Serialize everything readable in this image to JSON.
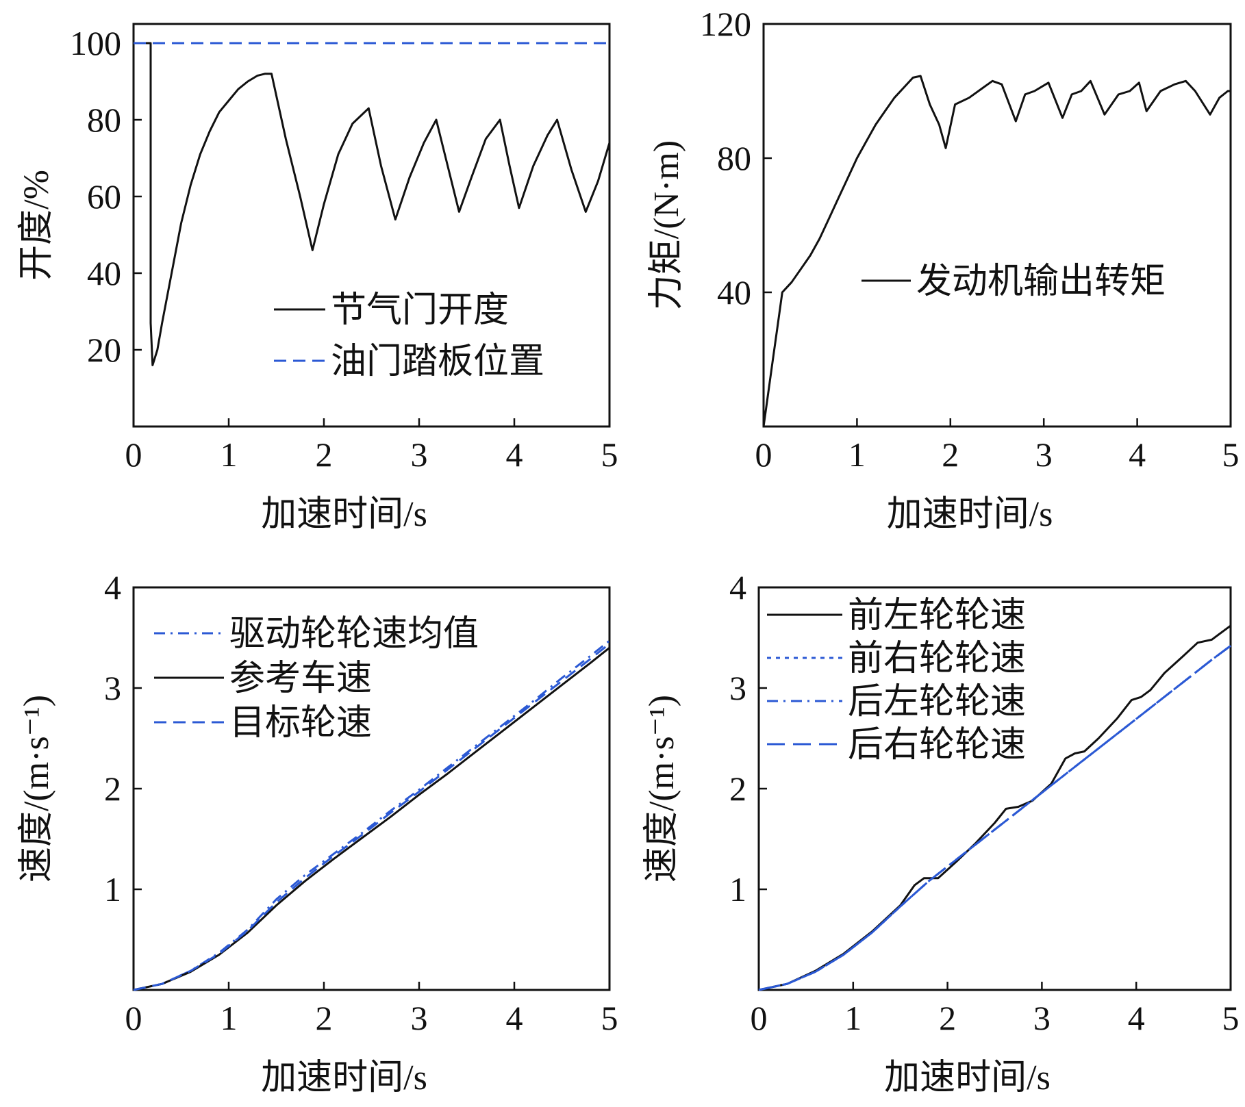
{
  "figure": {
    "charts": [
      {
        "id": "throttle",
        "type": "line",
        "xlabel": "加速时间/s",
        "ylabel": "开度/%",
        "xlim": [
          0,
          5
        ],
        "ylim": [
          0,
          105
        ],
        "xticks": [
          0,
          1,
          2,
          3,
          4,
          5
        ],
        "xtick_labels": [
          "0",
          "1",
          "2",
          "3",
          "4",
          "5"
        ],
        "yticks": [
          20,
          40,
          60,
          80,
          100
        ],
        "ytick_labels": [
          "20",
          "40",
          "60",
          "80",
          "100"
        ],
        "legend_position": "center-right",
        "series": [
          {
            "name": "节气门开度",
            "color": "#111111",
            "style": "solid",
            "x": [
              0,
              0.18,
              0.18,
              0.2,
              0.25,
              0.3,
              0.4,
              0.5,
              0.6,
              0.7,
              0.8,
              0.9,
              1.0,
              1.1,
              1.2,
              1.3,
              1.38,
              1.45,
              1.6,
              1.75,
              1.88,
              2.0,
              2.15,
              2.3,
              2.47,
              2.6,
              2.75,
              2.9,
              3.05,
              3.18,
              3.3,
              3.42,
              3.55,
              3.7,
              3.85,
              3.95,
              4.05,
              4.2,
              4.35,
              4.45,
              4.6,
              4.75,
              4.88,
              5.0
            ],
            "y": [
              100,
              100,
              27,
              16,
              20,
              27,
              40,
              53,
              63,
              71,
              77,
              82,
              85,
              88,
              90,
              91.5,
              92,
              92,
              75,
              60,
              46,
              58,
              71,
              79,
              83,
              68,
              54,
              65,
              74,
              80,
              68,
              56,
              65,
              75,
              80,
              68,
              57,
              68,
              76,
              80,
              67,
              56,
              64,
              74
            ]
          },
          {
            "name": "油门踏板位置",
            "color": "#2b59d4",
            "style": "dash",
            "x": [
              0,
              5
            ],
            "y": [
              100,
              100
            ]
          }
        ]
      },
      {
        "id": "torque",
        "type": "line",
        "xlabel": "加速时间/s",
        "ylabel": "力矩/(N·m)",
        "xlim": [
          0,
          5
        ],
        "ylim": [
          0,
          120
        ],
        "xticks": [
          0,
          1,
          2,
          3,
          4,
          5
        ],
        "xtick_labels": [
          "0",
          "1",
          "2",
          "3",
          "4",
          "5"
        ],
        "yticks": [
          40,
          80,
          120
        ],
        "ytick_labels": [
          "40",
          "80",
          "120"
        ],
        "legend_position": "center-right",
        "series": [
          {
            "name": "发动机输出转矩",
            "color": "#111111",
            "style": "solid",
            "x": [
              0,
              0.05,
              0.1,
              0.15,
              0.2,
              0.3,
              0.4,
              0.5,
              0.6,
              0.7,
              0.8,
              0.9,
              1.0,
              1.1,
              1.2,
              1.3,
              1.4,
              1.5,
              1.6,
              1.68,
              1.78,
              1.88,
              1.95,
              2.05,
              2.2,
              2.35,
              2.45,
              2.55,
              2.7,
              2.8,
              2.9,
              3.05,
              3.2,
              3.3,
              3.4,
              3.5,
              3.65,
              3.8,
              3.92,
              4.02,
              4.1,
              4.25,
              4.4,
              4.52,
              4.62,
              4.78,
              4.88,
              4.97,
              5.0
            ],
            "y": [
              0,
              10,
              20,
              30,
              40,
              43,
              47,
              51,
              56,
              62,
              68,
              74,
              80,
              85,
              90,
              94,
              98,
              101,
              104,
              104.5,
              96,
              90,
              83,
              96,
              98,
              101,
              103,
              102,
              91,
              99,
              100,
              102.5,
              92,
              99,
              100,
              103,
              93,
              99,
              100,
              102.5,
              94,
              100,
              102,
              103,
              100,
              93,
              98,
              100,
              100
            ]
          }
        ]
      },
      {
        "id": "drive-speed",
        "type": "line",
        "xlabel": "加速时间/s",
        "ylabel": "速度/(m·s⁻¹)",
        "xlim": [
          0,
          5
        ],
        "ylim": [
          0,
          4
        ],
        "xticks": [
          0,
          1,
          2,
          3,
          4,
          5
        ],
        "xtick_labels": [
          "0",
          "1",
          "2",
          "3",
          "4",
          "5"
        ],
        "yticks": [
          1,
          2,
          3,
          4
        ],
        "ytick_labels": [
          "1",
          "2",
          "3",
          "4"
        ],
        "legend_position": "top-left",
        "series": [
          {
            "name": "驱动轮轮速均值",
            "color": "#2b59d4",
            "style": "dashdot",
            "x": [
              0,
              0.3,
              0.6,
              0.9,
              1.2,
              1.5,
              1.8,
              2.1,
              2.4,
              2.7,
              3.0,
              3.3,
              3.6,
              3.9,
              4.2,
              4.5,
              4.8,
              5.0
            ],
            "y": [
              0,
              0.06,
              0.19,
              0.37,
              0.6,
              0.9,
              1.14,
              1.35,
              1.56,
              1.78,
              1.99,
              2.21,
              2.43,
              2.65,
              2.87,
              3.1,
              3.32,
              3.47
            ]
          },
          {
            "name": "参考车速",
            "color": "#111111",
            "style": "solid",
            "x": [
              0,
              0.3,
              0.6,
              0.9,
              1.2,
              1.5,
              1.8,
              2.1,
              2.4,
              2.7,
              3.0,
              3.3,
              3.6,
              3.9,
              4.2,
              4.5,
              4.8,
              5.0
            ],
            "y": [
              0,
              0.06,
              0.18,
              0.35,
              0.57,
              0.84,
              1.08,
              1.3,
              1.51,
              1.72,
              1.94,
              2.15,
              2.37,
              2.59,
              2.81,
              3.03,
              3.25,
              3.4
            ]
          },
          {
            "name": "目标轮速",
            "color": "#2b59d4",
            "style": "dash",
            "x": [
              0,
              0.3,
              0.6,
              0.9,
              1.2,
              1.5,
              1.8,
              2.1,
              2.4,
              2.7,
              3.0,
              3.3,
              3.6,
              3.9,
              4.2,
              4.5,
              4.8,
              5.0
            ],
            "y": [
              0,
              0.06,
              0.19,
              0.36,
              0.59,
              0.87,
              1.11,
              1.33,
              1.54,
              1.76,
              1.97,
              2.19,
              2.41,
              2.63,
              2.85,
              3.07,
              3.29,
              3.44
            ]
          }
        ]
      },
      {
        "id": "wheel-speed",
        "type": "line",
        "xlabel": "加速时间/s",
        "ylabel": "速度/(m·s⁻¹)",
        "xlim": [
          0,
          5
        ],
        "ylim": [
          0,
          4
        ],
        "xticks": [
          0,
          1,
          2,
          3,
          4,
          5
        ],
        "xtick_labels": [
          "0",
          "1",
          "2",
          "3",
          "4",
          "5"
        ],
        "yticks": [
          1,
          2,
          3,
          4
        ],
        "ytick_labels": [
          "1",
          "2",
          "3",
          "4"
        ],
        "legend_position": "top-left",
        "series": [
          {
            "name": "前左轮轮速",
            "color": "#111111",
            "style": "solid",
            "x": [
              0,
              0.3,
              0.6,
              0.9,
              1.2,
              1.5,
              1.65,
              1.75,
              1.9,
              2.1,
              2.3,
              2.5,
              2.62,
              2.75,
              2.9,
              3.1,
              3.25,
              3.35,
              3.45,
              3.6,
              3.8,
              3.95,
              4.05,
              4.15,
              4.3,
              4.5,
              4.65,
              4.8,
              5.0
            ],
            "y": [
              0,
              0.06,
              0.19,
              0.36,
              0.58,
              0.84,
              1.04,
              1.11,
              1.11,
              1.28,
              1.46,
              1.66,
              1.8,
              1.82,
              1.88,
              2.05,
              2.3,
              2.35,
              2.37,
              2.5,
              2.7,
              2.88,
              2.91,
              2.98,
              3.15,
              3.32,
              3.45,
              3.48,
              3.62
            ]
          },
          {
            "name": "前右轮轮速",
            "color": "#2b59d4",
            "style": "dot",
            "x": [
              0,
              0.3,
              0.6,
              0.9,
              1.2,
              1.5,
              1.8,
              2.1,
              2.4,
              2.7,
              3.0,
              3.3,
              3.6,
              3.9,
              4.2,
              4.5,
              4.8,
              5.0
            ],
            "y": [
              0,
              0.06,
              0.18,
              0.35,
              0.57,
              0.83,
              1.08,
              1.3,
              1.52,
              1.74,
              1.96,
              2.18,
              2.4,
              2.62,
              2.84,
              3.06,
              3.28,
              3.42
            ]
          },
          {
            "name": "后左轮轮速",
            "color": "#2b59d4",
            "style": "dashdot",
            "x": [
              0,
              0.3,
              0.6,
              0.9,
              1.2,
              1.5,
              1.8,
              2.1,
              2.4,
              2.7,
              3.0,
              3.3,
              3.6,
              3.9,
              4.2,
              4.5,
              4.8,
              5.0
            ],
            "y": [
              0,
              0.06,
              0.18,
              0.35,
              0.57,
              0.83,
              1.08,
              1.3,
              1.52,
              1.74,
              1.96,
              2.18,
              2.4,
              2.62,
              2.84,
              3.06,
              3.28,
              3.42
            ]
          },
          {
            "name": "后右轮轮速",
            "color": "#2b59d4",
            "style": "longdash",
            "x": [
              0,
              0.3,
              0.6,
              0.9,
              1.2,
              1.5,
              1.8,
              2.1,
              2.4,
              2.7,
              3.0,
              3.3,
              3.6,
              3.9,
              4.2,
              4.5,
              4.8,
              5.0
            ],
            "y": [
              0,
              0.06,
              0.18,
              0.35,
              0.57,
              0.83,
              1.08,
              1.3,
              1.52,
              1.74,
              1.96,
              2.18,
              2.4,
              2.62,
              2.84,
              3.06,
              3.28,
              3.42
            ]
          }
        ]
      }
    ]
  }
}
